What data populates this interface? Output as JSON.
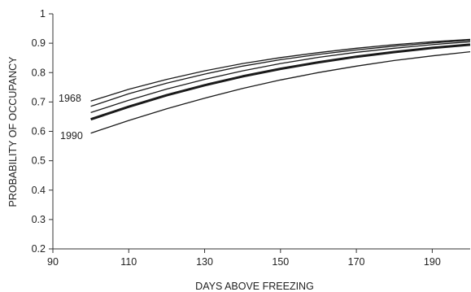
{
  "chart_data": {
    "type": "line",
    "title": "",
    "xlabel": "DAYS ABOVE FREEZING",
    "ylabel": "PROBABILITY OF OCCUPANCY",
    "xlim": [
      90,
      200
    ],
    "ylim": [
      0.2,
      1.0
    ],
    "x_ticks": [
      90,
      110,
      130,
      150,
      170,
      190
    ],
    "y_ticks": [
      "0.2",
      "0.3",
      "0.4",
      "0.5",
      "0.6",
      "0.7",
      "0.8",
      "0.9",
      "1"
    ],
    "grid": false,
    "legend": "none",
    "annotations": [
      {
        "text": "1968"
      },
      {
        "text": "1990"
      }
    ],
    "x": [
      100,
      110,
      120,
      130,
      140,
      150,
      160,
      170,
      180,
      190,
      200
    ],
    "series": [
      {
        "values": [
          0.703,
          0.743,
          0.777,
          0.806,
          0.831,
          0.851,
          0.868,
          0.883,
          0.895,
          0.905,
          0.913
        ],
        "emphasis": false
      },
      {
        "values": [
          0.685,
          0.728,
          0.764,
          0.795,
          0.822,
          0.844,
          0.862,
          0.877,
          0.89,
          0.901,
          0.91
        ],
        "emphasis": false
      },
      {
        "values": [
          0.664,
          0.706,
          0.744,
          0.777,
          0.806,
          0.831,
          0.852,
          0.869,
          0.883,
          0.895,
          0.905
        ],
        "emphasis": false
      },
      {
        "values": [
          0.641,
          0.684,
          0.723,
          0.757,
          0.787,
          0.813,
          0.835,
          0.854,
          0.87,
          0.884,
          0.895
        ],
        "emphasis": true
      },
      {
        "values": [
          0.594,
          0.637,
          0.677,
          0.713,
          0.746,
          0.775,
          0.8,
          0.822,
          0.841,
          0.857,
          0.871
        ],
        "emphasis": false
      }
    ],
    "colors": {
      "line": "#1a1a1a",
      "axis": "#333333"
    }
  }
}
